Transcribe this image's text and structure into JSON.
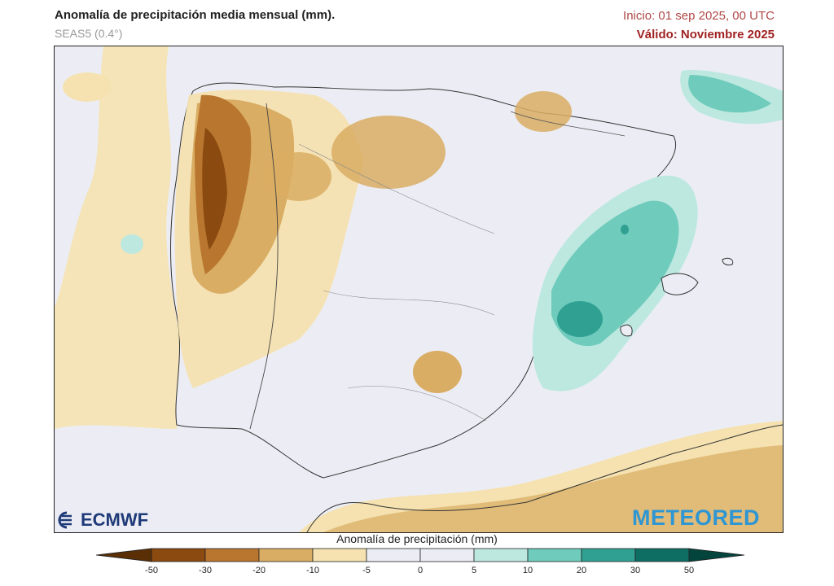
{
  "header": {
    "title": "Anomalía de precipitación media mensual (mm).",
    "model": "SEAS5 (0.4°)",
    "init": "Inicio: 01 sep 2025, 00 UTC",
    "valid": "Válido: Noviembre 2025"
  },
  "map": {
    "region": "Iberian Peninsula",
    "variable": "precipitation anomaly",
    "units": "mm"
  },
  "branding": {
    "ecmwf": "ECMWF",
    "meteored": "METEORED"
  },
  "legend": {
    "title": "Anomalía de precipitación (mm)",
    "ticks": [
      "-50",
      "-30",
      "-20",
      "-10",
      "-5",
      "0",
      "5",
      "10",
      "20",
      "30",
      "50"
    ],
    "colors": [
      "#5a2f06",
      "#8a4a10",
      "#b9762f",
      "#d9ad63",
      "#f5e2b0",
      "#ecedf4",
      "#ecedf4",
      "#bde8e0",
      "#6fcbbb",
      "#30a092",
      "#0f6e63",
      "#03453d"
    ]
  }
}
